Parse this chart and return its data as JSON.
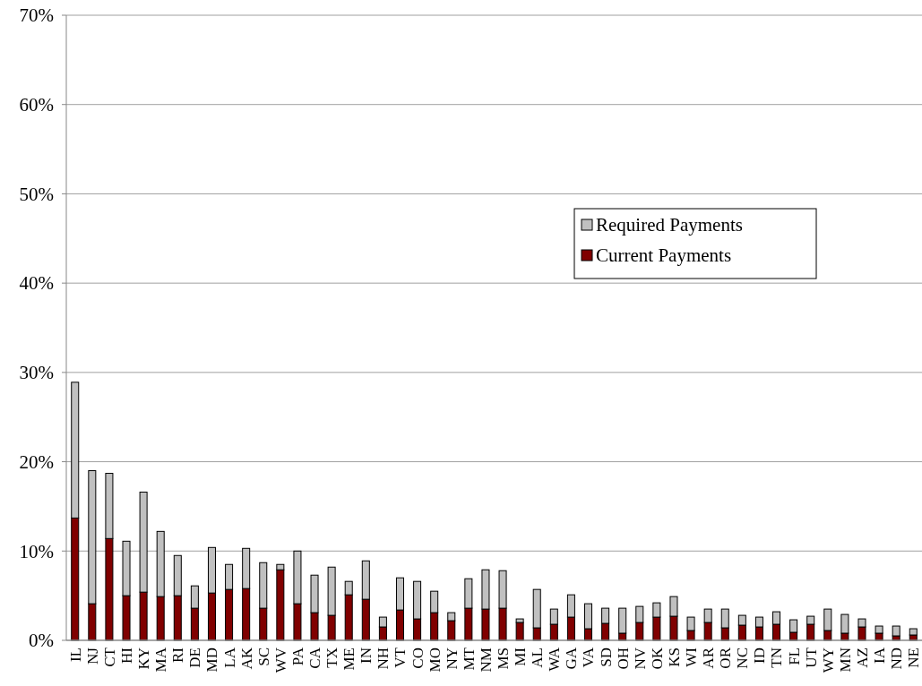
{
  "chart_data": {
    "type": "bar",
    "stacked": true,
    "categories": [
      "IL",
      "NJ",
      "CT",
      "HI",
      "KY",
      "MA",
      "RI",
      "DE",
      "MD",
      "LA",
      "AK",
      "SC",
      "WV",
      "PA",
      "CA",
      "TX",
      "ME",
      "IN",
      "NH",
      "VT",
      "CO",
      "MO",
      "NY",
      "MT",
      "NM",
      "MS",
      "MI",
      "AL",
      "WA",
      "GA",
      "VA",
      "SD",
      "OH",
      "NV",
      "OK",
      "KS",
      "WI",
      "AR",
      "OR",
      "NC",
      "ID",
      "TN",
      "FL",
      "UT",
      "WY",
      "MN",
      "AZ",
      "IA",
      "ND",
      "NE"
    ],
    "series": [
      {
        "name": "Current Payments",
        "color": "#800000",
        "values": [
          13.7,
          4.1,
          11.4,
          5.0,
          5.4,
          4.9,
          5.0,
          3.6,
          5.3,
          5.7,
          5.8,
          3.6,
          7.9,
          4.1,
          3.1,
          2.8,
          5.1,
          4.6,
          1.5,
          3.4,
          2.4,
          3.1,
          2.2,
          3.6,
          3.5,
          3.6,
          2.0,
          1.4,
          1.8,
          2.6,
          1.3,
          1.9,
          0.8,
          2.0,
          2.6,
          2.7,
          1.1,
          2.0,
          1.4,
          1.7,
          1.5,
          1.8,
          0.9,
          1.8,
          1.1,
          0.8,
          1.5,
          0.8,
          0.5,
          0.6
        ]
      },
      {
        "name": "Required Payments",
        "color": "#c0c0c0",
        "values": [
          15.2,
          14.9,
          7.3,
          6.1,
          11.2,
          7.3,
          4.5,
          2.5,
          5.1,
          2.8,
          4.5,
          5.1,
          0.6,
          5.9,
          4.2,
          5.4,
          1.5,
          4.3,
          1.1,
          3.6,
          4.2,
          2.4,
          0.9,
          3.3,
          4.4,
          4.2,
          0.4,
          4.3,
          1.7,
          2.5,
          2.8,
          1.7,
          2.8,
          1.8,
          1.6,
          2.2,
          1.5,
          1.5,
          2.1,
          1.1,
          1.1,
          1.4,
          1.4,
          0.9,
          2.4,
          2.1,
          0.9,
          0.8,
          1.1,
          0.7
        ]
      }
    ],
    "ylim": [
      0,
      70
    ],
    "yticks": [
      {
        "value": 0,
        "label": "0%"
      },
      {
        "value": 10,
        "label": "10%"
      },
      {
        "value": 20,
        "label": "20%"
      },
      {
        "value": 30,
        "label": "30%"
      },
      {
        "value": 40,
        "label": "40%"
      },
      {
        "value": 50,
        "label": "50%"
      },
      {
        "value": 60,
        "label": "60%"
      },
      {
        "value": 70,
        "label": "70%"
      }
    ],
    "grid": "y",
    "legend": "right"
  }
}
